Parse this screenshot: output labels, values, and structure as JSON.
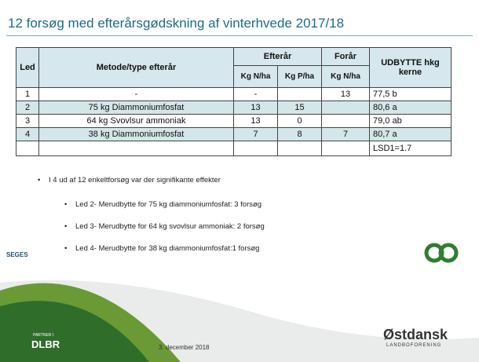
{
  "title": "12 forsøg med efterårsgødskning af vinterhvede 2017/18",
  "table": {
    "header": [
      "Led",
      "Metode/type efterår",
      "Efterår",
      "Forår",
      "UDBYTTE hkg kerne"
    ],
    "subheader": [
      "Kg N/ha",
      "Kg P/ha",
      "Kg N/ha"
    ],
    "rows": [
      [
        "1",
        "-",
        "-",
        null,
        "13",
        "77,5 b"
      ],
      [
        "2",
        "75 kg Diammoniumfosfat",
        "13",
        "15",
        null,
        "80,6 a"
      ],
      [
        "3",
        "64 kg Svovlsur ammoniak",
        "13",
        "0",
        null,
        "79,0 ab"
      ],
      [
        "4",
        "38 kg Diammoniumfosfat",
        "7",
        "8",
        "7",
        "80,7 a"
      ],
      [
        null,
        null,
        null,
        null,
        null,
        "LSD1=1.7"
      ]
    ]
  },
  "bullets": [
    "I 4 ud af 12 enkeltforsøg var der signifikante effekter",
    "Led 2- Merudbytte for 75 kg diammoniumfosfat: 3 forsøg",
    "Led 3- Merudbytte for 64 kg svovlsur ammoniak: 2 forsøg",
    "Led 4- Merudbytte for 38 kg diammoniumfosfat:1 forsøg"
  ],
  "footer": {
    "seges": "SEGES",
    "partner": "PARTNER I",
    "dlbr": "DLBR",
    "date": "3. december 2018",
    "org": "Østdansk",
    "org_sub": "LANDBOFORENING"
  }
}
